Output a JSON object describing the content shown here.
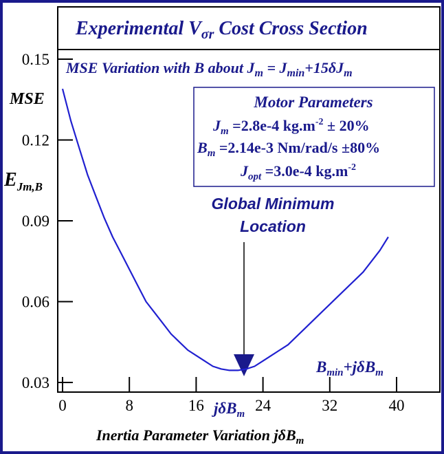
{
  "colors": {
    "frame": "#1a1a8c",
    "curve": "#2020d0",
    "text": "#1a1a8c",
    "axis": "#000000",
    "arrow": "#1a1a8c"
  },
  "title": {
    "main": "Experimental V",
    "sub_sigma": "σ",
    "sub_r": "r",
    "rest": " Cost Cross Section"
  },
  "subtitle": {
    "a": "MSE Variation with B about J",
    "b": "m",
    "c": " = J",
    "d": "min",
    "e": "+15",
    "f": "δ",
    "g": "J",
    "h": "m"
  },
  "params_box": {
    "title": "Motor Parameters",
    "line1": {
      "sym": "J",
      "sub": "m",
      "val": " =2.8e-4 kg.m",
      "sup": "-2",
      "tail": " ± 20%"
    },
    "line2": {
      "sym": "B",
      "sub": "m",
      "val": " =2.14e-3 Nm/rad/s ",
      "pm": "±",
      "tail": "80%"
    },
    "line3": {
      "sym": "J",
      "sub": "opt",
      "val": " =3.0e-4 kg.m",
      "sup": "-2"
    }
  },
  "annotation": {
    "line1": "Global Minimum",
    "line2": "Location"
  },
  "curve_label": {
    "a": "B",
    "b": "min",
    "c": "+j",
    "d": "δ",
    "e": "B",
    "f": "m"
  },
  "x_marker": {
    "a": "j",
    "b": "δ",
    "c": "B",
    "d": "m"
  },
  "y_labels": {
    "mse": "MSE",
    "e": "E",
    "e_sub": "Jm,B"
  },
  "x_label": {
    "a": "Inertia Parameter Variation j",
    "b": "δ",
    "c": "B",
    "d": "m"
  },
  "chart_data": {
    "type": "line",
    "title": "Experimental Vσr Cost Cross Section",
    "subtitle": "MSE Variation with B about Jm = Jmin+15δJm",
    "xlabel": "Inertia Parameter Variation jδBm",
    "ylabel": "MSE / EJm,B",
    "xlim": [
      0,
      45
    ],
    "ylim": [
      0.03,
      0.15
    ],
    "x_ticks": [
      0,
      8,
      16,
      24,
      32,
      40
    ],
    "y_ticks": [
      0.03,
      0.06,
      0.09,
      0.12,
      0.15
    ],
    "x_tick_labels": [
      "0",
      "8",
      "16",
      "24",
      "32",
      "40"
    ],
    "y_tick_labels": [
      "0.03",
      "0.06",
      "0.09",
      "0.12",
      "0.15"
    ],
    "grid": false,
    "series": [
      {
        "x": [
          0,
          1,
          2,
          3,
          4,
          5,
          6,
          7,
          8,
          9,
          10,
          11,
          12,
          13,
          14,
          15,
          16,
          17,
          18,
          19,
          20,
          21,
          22,
          23,
          24,
          25,
          26,
          27,
          28,
          29,
          30,
          31,
          32,
          33,
          34,
          35,
          36,
          37,
          38,
          39
        ],
        "y": [
          0.139,
          0.127,
          0.117,
          0.107,
          0.099,
          0.091,
          0.084,
          0.078,
          0.072,
          0.066,
          0.06,
          0.056,
          0.052,
          0.048,
          0.045,
          0.042,
          0.04,
          0.038,
          0.036,
          0.035,
          0.0345,
          0.0345,
          0.035,
          0.036,
          0.038,
          0.04,
          0.042,
          0.044,
          0.047,
          0.05,
          0.053,
          0.056,
          0.059,
          0.062,
          0.065,
          0.068,
          0.071,
          0.075,
          0.079,
          0.084
        ]
      }
    ],
    "annotations": [
      "Global Minimum Location",
      "Bmin+jδBm",
      "jδBm"
    ]
  }
}
